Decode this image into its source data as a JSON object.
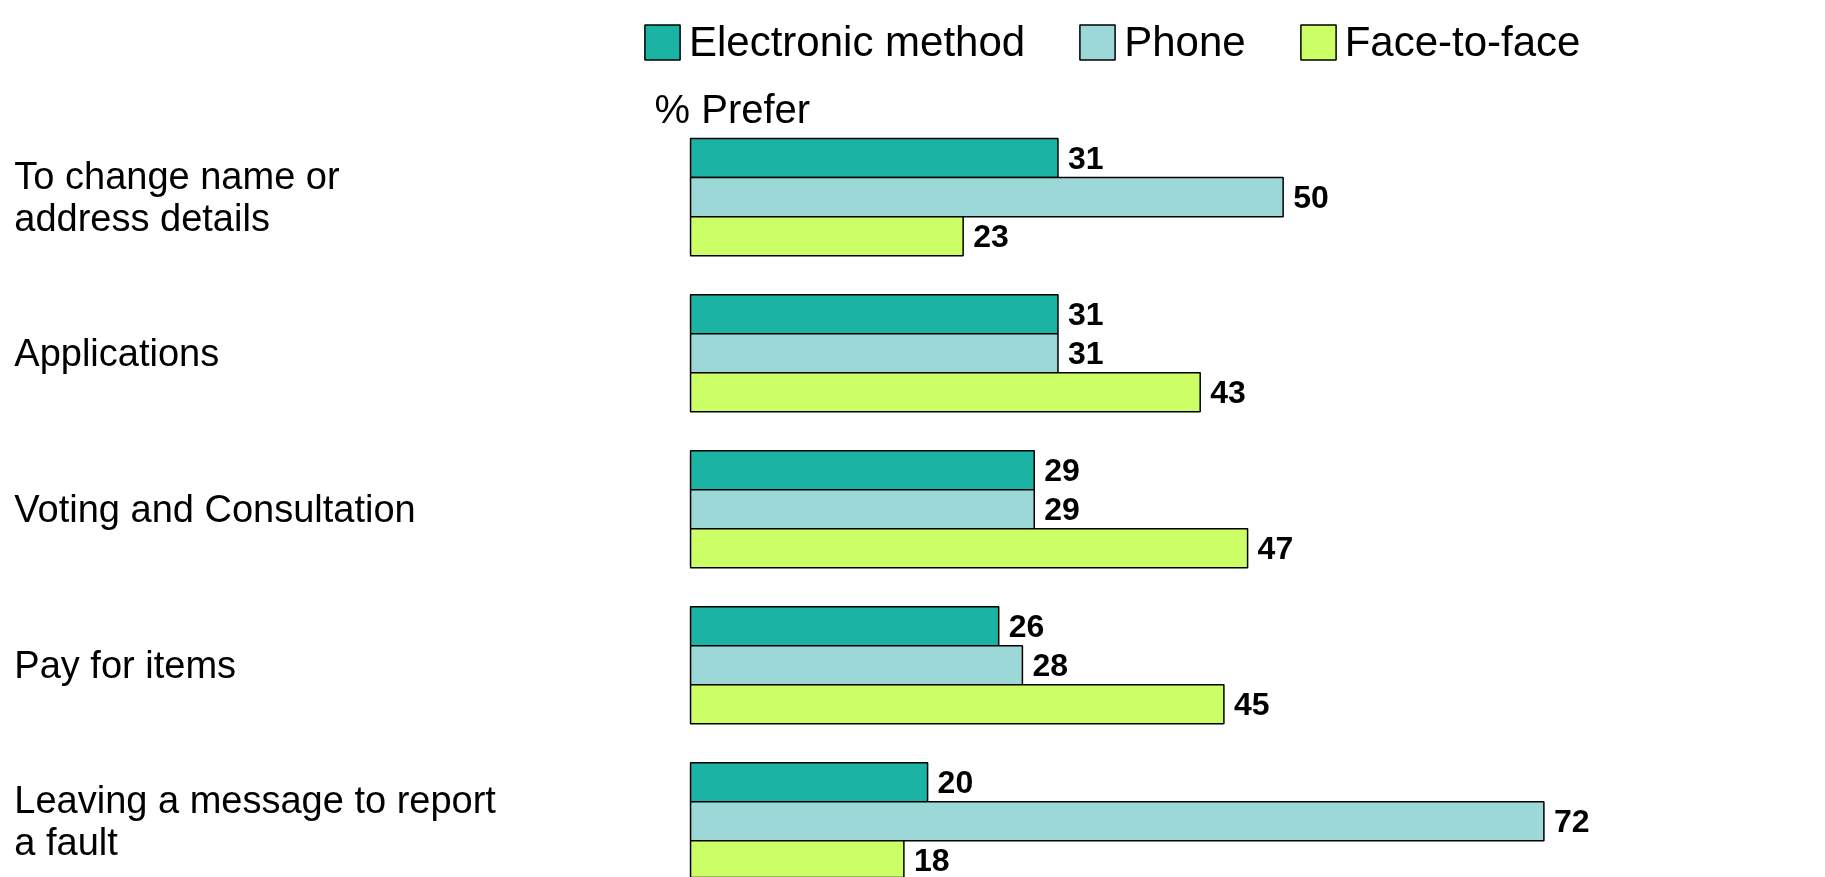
{
  "chart_data": {
    "type": "bar",
    "orientation": "horizontal",
    "categories": [
      "To change name or\naddress details",
      "Applications",
      "Voting and Consultation",
      "Pay for items",
      "Leaving a message to report\na fault"
    ],
    "series": [
      {
        "name": "Electronic method",
        "color": "#1bb3a3",
        "values": [
          31,
          31,
          29,
          26,
          20
        ]
      },
      {
        "name": "Phone",
        "color": "#9cd8d8",
        "values": [
          50,
          31,
          29,
          28,
          72
        ]
      },
      {
        "name": "Face-to-face",
        "color": "#ccff66",
        "values": [
          23,
          43,
          47,
          45,
          18
        ]
      }
    ],
    "annotations": [
      "% Prefer"
    ],
    "data_labels": true,
    "legend": "top",
    "grid": false,
    "tick_labels": "y"
  }
}
